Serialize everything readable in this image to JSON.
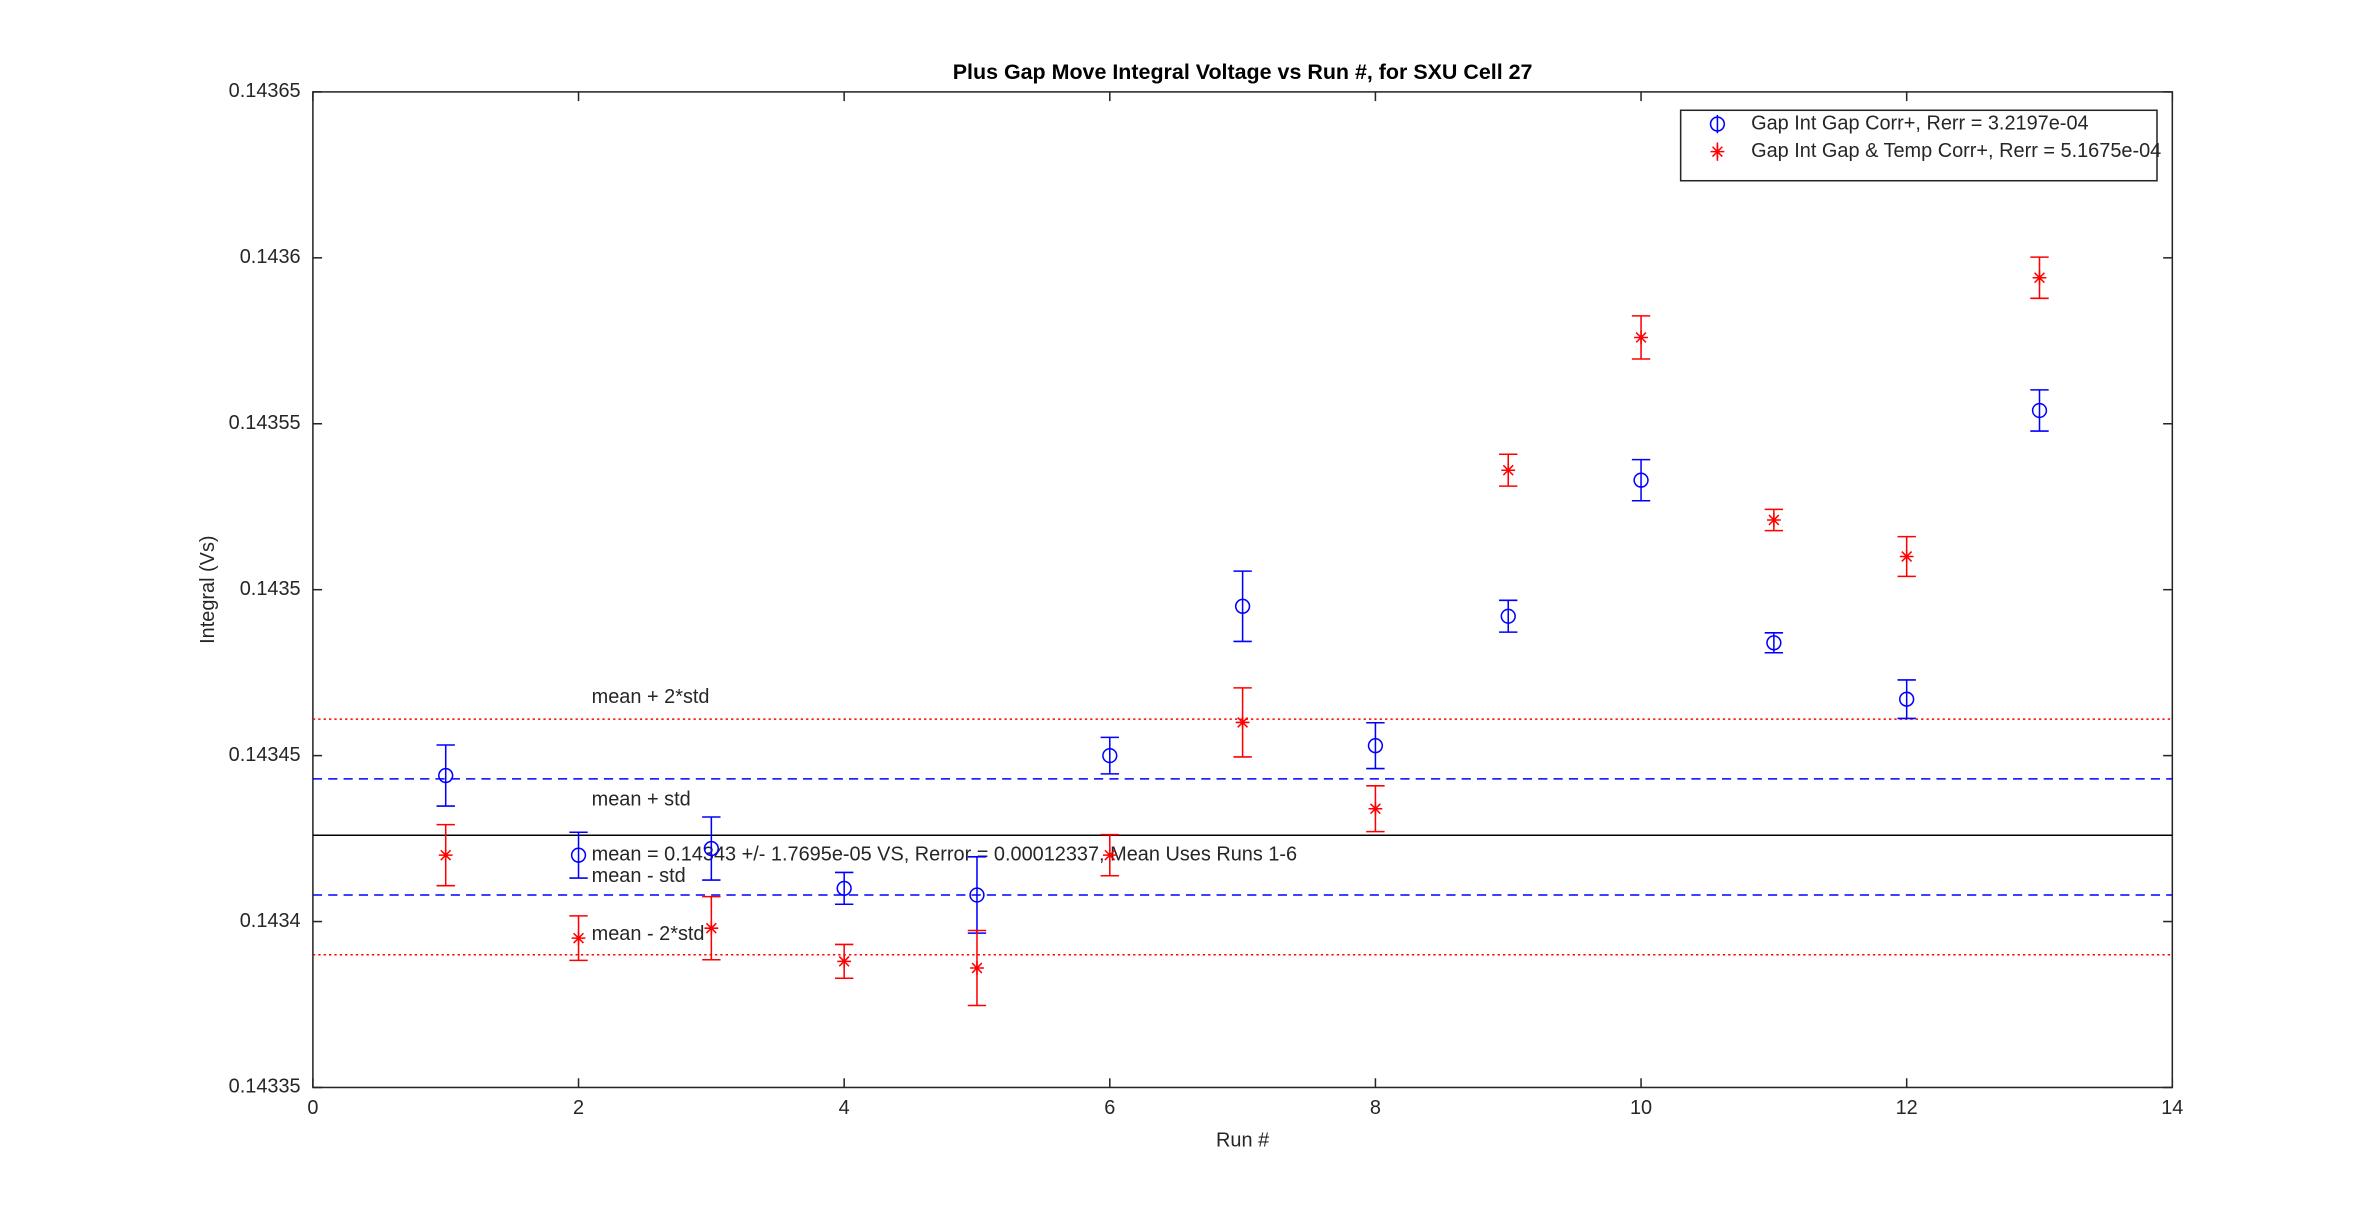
{
  "chart_data": {
    "type": "errorbar-scatter",
    "title": "Plus Gap Move Integral Voltage vs Run #, for SXU Cell 27",
    "xlabel": "Run #",
    "ylabel": "Integral (Vs)",
    "x": [
      1,
      2,
      3,
      4,
      5,
      6,
      7,
      8,
      9,
      10,
      11,
      12,
      13
    ],
    "series": [
      {
        "name": "Gap Int Gap Corr+, Rerr = 3.2197e-04",
        "color": "#0000ff",
        "marker": "circle",
        "values": [
          0.143444,
          0.14342,
          0.143422,
          0.14341,
          0.143408,
          0.14345,
          0.143495,
          0.143453,
          0.143492,
          0.143533,
          0.143484,
          0.143467,
          0.143554
        ],
        "errors": [
          9.2e-06,
          6.9e-06,
          9.5e-06,
          4.8e-06,
          1.15e-05,
          5.5e-06,
          1.06e-05,
          6.9e-06,
          4.8e-06,
          6.2e-06,
          3e-06,
          5.8e-06,
          6.2e-06
        ]
      },
      {
        "name": "Gap Int Gap & Temp  Corr+, Rerr = 5.1675e-04",
        "color": "#ff0000",
        "marker": "asterisk",
        "values": [
          0.14342,
          0.143395,
          0.143398,
          0.143388,
          0.143386,
          0.14342,
          0.14346,
          0.143434,
          0.143536,
          0.143576,
          0.143521,
          0.14351,
          0.143594
        ],
        "errors": [
          9.2e-06,
          6.7e-06,
          9.5e-06,
          5.1e-06,
          1.13e-05,
          6.2e-06,
          1.04e-05,
          6.9e-06,
          4.8e-06,
          6.5e-06,
          3.2e-06,
          6e-06,
          6.2e-06
        ]
      }
    ],
    "reference_lines": [
      {
        "value": 0.143461,
        "color": "#ff0000",
        "style": "dotted",
        "label": "mean + 2*std"
      },
      {
        "value": 0.143443,
        "color": "#0000ff",
        "style": "dashed",
        "label": "mean + std"
      },
      {
        "value": 0.143426,
        "color": "#000000",
        "style": "solid",
        "label": "mean = 0.14343 +/- 1.7695e-05 VS, Rerror = 0.00012337, Mean Uses Runs 1-6"
      },
      {
        "value": 0.143408,
        "color": "#0000ff",
        "style": "dashed",
        "label": "mean - std"
      },
      {
        "value": 0.14339,
        "color": "#ff0000",
        "style": "dotted",
        "label": "mean - 2*std"
      }
    ],
    "xlim": [
      0,
      14
    ],
    "xticks": [
      0,
      2,
      4,
      6,
      8,
      10,
      12,
      14
    ],
    "ylim": [
      0.14335,
      0.14365
    ],
    "yticks": [
      0.14335,
      0.1434,
      0.14345,
      0.1435,
      0.14355,
      0.1436,
      0.14365
    ],
    "legend": "top-right"
  }
}
